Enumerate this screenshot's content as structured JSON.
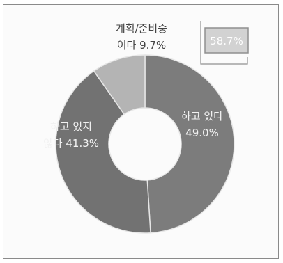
{
  "chart_data": {
    "type": "pie",
    "variant": "donut",
    "slices": [
      {
        "label_line1": "하고 있다",
        "label_line2": "49.0%",
        "value": 49.0,
        "color": "#7c7c7c"
      },
      {
        "label_line1": "하고 있지",
        "label_line2": "않다 41.3%",
        "value": 41.3,
        "color": "#727272"
      },
      {
        "label_line1": "계획/준비중",
        "label_line2": "이다 9.7%",
        "value": 9.7,
        "color": "#b4b4b4"
      }
    ],
    "callout": {
      "text": "58.7%",
      "value": 58.7
    }
  }
}
